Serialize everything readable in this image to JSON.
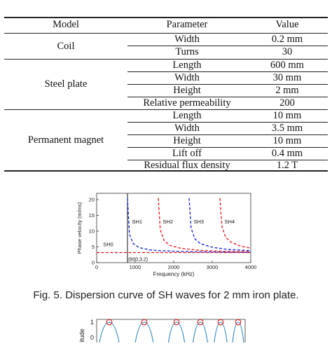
{
  "table": {
    "headers": {
      "model": "Model",
      "parameter": "Parameter",
      "value": "Value"
    },
    "groups": [
      {
        "model": "Coil",
        "rows": [
          {
            "parameter": "Width",
            "value": "0.2 mm"
          },
          {
            "parameter": "Turns",
            "value": "30"
          }
        ]
      },
      {
        "model": "Steel plate",
        "rows": [
          {
            "parameter": "Length",
            "value": "600 mm"
          },
          {
            "parameter": "Width",
            "value": "30 mm"
          },
          {
            "parameter": "Height",
            "value": "2 mm"
          },
          {
            "parameter": "Relative permeability",
            "value": "200"
          }
        ]
      },
      {
        "model": "Permanent magnet",
        "rows": [
          {
            "parameter": "Length",
            "value": "10 mm"
          },
          {
            "parameter": "Width",
            "value": "3.5 mm"
          },
          {
            "parameter": "Height",
            "value": "10 mm"
          },
          {
            "parameter": "Lift off",
            "value": "0.4 mm"
          },
          {
            "parameter": "Residual flux density",
            "value": "1.2 T"
          }
        ]
      }
    ]
  },
  "chart_data": {
    "type": "line",
    "xlabel": "Frequency (kHz)",
    "ylabel": "Phase velocity (m/ms)",
    "xlim": [
      0,
      4000
    ],
    "ylim": [
      0,
      22
    ],
    "xticks": [
      "0",
      "1000",
      "2000",
      "3000",
      "4000"
    ],
    "yticks": [
      "0",
      "5",
      "10",
      "15",
      "20"
    ],
    "annotation": "(800,3.2)",
    "series": [
      {
        "name": "SH0",
        "color": "#e8202a",
        "x": [
          0,
          1000,
          2000,
          3000,
          4000
        ],
        "y": [
          3.2,
          3.2,
          3.2,
          3.2,
          3.2
        ]
      },
      {
        "name": "SH1",
        "color": "#1f2fd6",
        "x": [
          800,
          850,
          950,
          1100,
          1400,
          1800,
          2500,
          3200,
          4000
        ],
        "y": [
          20.5,
          9.0,
          6.0,
          4.8,
          4.0,
          3.7,
          3.45,
          3.35,
          3.3
        ]
      },
      {
        "name": "SH2",
        "color": "#e8202a",
        "x": [
          1600,
          1650,
          1750,
          1900,
          2200,
          2700,
          3300,
          4000
        ],
        "y": [
          20.5,
          10.5,
          7.0,
          5.5,
          4.5,
          3.9,
          3.6,
          3.45
        ]
      },
      {
        "name": "SH3",
        "color": "#1f2fd6",
        "x": [
          2400,
          2450,
          2550,
          2700,
          3000,
          3400,
          4000
        ],
        "y": [
          20.5,
          11.0,
          7.5,
          6.0,
          4.9,
          4.2,
          3.8
        ]
      },
      {
        "name": "SH4",
        "color": "#e8202a",
        "x": [
          3200,
          3250,
          3350,
          3500,
          3750,
          4000
        ],
        "y": [
          20.5,
          11.5,
          8.0,
          6.4,
          5.2,
          4.6
        ]
      }
    ]
  },
  "figure_caption": "Fig. 5.    Dispersion curve of SH waves for 2 mm iron plate.",
  "bottom_figure": {
    "yticks": [
      "1",
      "0"
    ],
    "ylabel_fragment": "litude"
  }
}
